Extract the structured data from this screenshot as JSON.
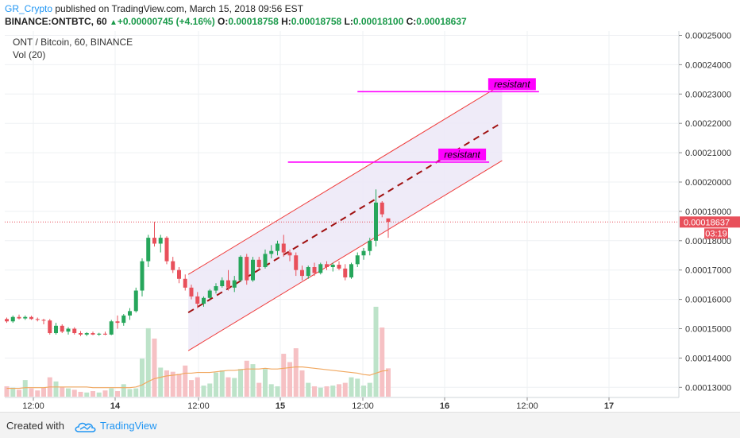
{
  "header": {
    "author": "GR_Crypto",
    "published_text": " published on TradingView.com, March 15, 2018 09:56 EST",
    "symbol": "BINANCE:ONTBTC, 60",
    "change": "+0.00000745 (+4.16%)",
    "o_label": "O:",
    "o_value": "0.00018758",
    "h_label": "H:",
    "h_value": "0.00018758",
    "l_label": "L:",
    "l_value": "0.00018100",
    "c_label": "C:",
    "c_value": "0.00018637"
  },
  "legend": {
    "title": "ONT / Bitcoin, 60, BINANCE",
    "vol": "Vol (20)"
  },
  "footer": {
    "created_with": "Created with",
    "brand": "TradingView"
  },
  "colors": {
    "up": "#26a65b",
    "down": "#e8505b",
    "up_vol": "#bde3c9",
    "down_vol": "#f6c1c4",
    "channel_line": "#ef3b3b",
    "channel_fill": "#ece8f7",
    "midline": "#a01010",
    "resistance": "#ff00ff",
    "ma": "#f1a860",
    "price_badge": "#e8505b"
  },
  "chart_data": {
    "type": "candlestick",
    "x_tick_labels": [
      "12:00",
      "14",
      "12:00",
      "15",
      "12:00",
      "16",
      "12:00",
      "17"
    ],
    "y_tick_labels": [
      "0.00025000",
      "0.00024000",
      "0.00023000",
      "0.00022000",
      "0.00021000",
      "0.00020000",
      "0.00019000",
      "0.00018000",
      "0.00017000",
      "0.00016000",
      "0.00015000",
      "0.00014000",
      "0.00013000"
    ],
    "ylim": [
      0.000128,
      0.0002535
    ],
    "last_price": "0.00018637",
    "countdown": "03:19",
    "candles": [
      {
        "o": 0.0001533,
        "h": 0.0001538,
        "l": 0.000152,
        "c": 0.0001525
      },
      {
        "o": 0.0001525,
        "h": 0.0001545,
        "l": 0.000152,
        "c": 0.000154
      },
      {
        "o": 0.000154,
        "h": 0.0001548,
        "l": 0.0001532,
        "c": 0.0001535
      },
      {
        "o": 0.0001535,
        "h": 0.0001545,
        "l": 0.000153,
        "c": 0.000154
      },
      {
        "o": 0.000154,
        "h": 0.0001544,
        "l": 0.000153,
        "c": 0.0001533
      },
      {
        "o": 0.0001533,
        "h": 0.0001538,
        "l": 0.0001525,
        "c": 0.000153
      },
      {
        "o": 0.000153,
        "h": 0.0001534,
        "l": 0.0001515,
        "c": 0.0001528
      },
      {
        "o": 0.0001528,
        "h": 0.0001533,
        "l": 0.000148,
        "c": 0.0001485
      },
      {
        "o": 0.0001485,
        "h": 0.000152,
        "l": 0.000148,
        "c": 0.000151
      },
      {
        "o": 0.000151,
        "h": 0.0001515,
        "l": 0.0001485,
        "c": 0.000149
      },
      {
        "o": 0.000149,
        "h": 0.0001505,
        "l": 0.000148,
        "c": 0.00015
      },
      {
        "o": 0.00015,
        "h": 0.0001505,
        "l": 0.000148,
        "c": 0.0001485
      },
      {
        "o": 0.0001485,
        "h": 0.0001492,
        "l": 0.0001475,
        "c": 0.000148
      },
      {
        "o": 0.000148,
        "h": 0.0001488,
        "l": 0.0001475,
        "c": 0.0001485
      },
      {
        "o": 0.0001485,
        "h": 0.000149,
        "l": 0.0001478,
        "c": 0.000148
      },
      {
        "o": 0.000148,
        "h": 0.0001486,
        "l": 0.0001476,
        "c": 0.0001483
      },
      {
        "o": 0.0001483,
        "h": 0.000149,
        "l": 0.0001478,
        "c": 0.000148
      },
      {
        "o": 0.000148,
        "h": 0.000153,
        "l": 0.0001478,
        "c": 0.0001525
      },
      {
        "o": 0.0001525,
        "h": 0.0001545,
        "l": 0.00015,
        "c": 0.000152
      },
      {
        "o": 0.000152,
        "h": 0.000155,
        "l": 0.000151,
        "c": 0.0001545
      },
      {
        "o": 0.0001545,
        "h": 0.000157,
        "l": 0.000153,
        "c": 0.000156
      },
      {
        "o": 0.000156,
        "h": 0.000164,
        "l": 0.0001555,
        "c": 0.000163
      },
      {
        "o": 0.000163,
        "h": 0.000174,
        "l": 0.000161,
        "c": 0.000173
      },
      {
        "o": 0.000173,
        "h": 0.000182,
        "l": 0.000171,
        "c": 0.000181
      },
      {
        "o": 0.000181,
        "h": 0.0001865,
        "l": 0.000178,
        "c": 0.000179
      },
      {
        "o": 0.000179,
        "h": 0.000182,
        "l": 0.000176,
        "c": 0.000181
      },
      {
        "o": 0.000181,
        "h": 0.0001815,
        "l": 0.000172,
        "c": 0.000173
      },
      {
        "o": 0.000173,
        "h": 0.0001745,
        "l": 0.000169,
        "c": 0.00017
      },
      {
        "o": 0.00017,
        "h": 0.000171,
        "l": 0.0001655,
        "c": 0.000167
      },
      {
        "o": 0.000167,
        "h": 0.0001685,
        "l": 0.000163,
        "c": 0.000164
      },
      {
        "o": 0.000164,
        "h": 0.000165,
        "l": 0.00016,
        "c": 0.000161
      },
      {
        "o": 0.000161,
        "h": 0.0001625,
        "l": 0.000157,
        "c": 0.0001585
      },
      {
        "o": 0.0001585,
        "h": 0.000161,
        "l": 0.0001575,
        "c": 0.0001605
      },
      {
        "o": 0.0001605,
        "h": 0.0001635,
        "l": 0.00016,
        "c": 0.000163
      },
      {
        "o": 0.000163,
        "h": 0.0001655,
        "l": 0.000162,
        "c": 0.0001645
      },
      {
        "o": 0.0001645,
        "h": 0.0001675,
        "l": 0.000164,
        "c": 0.0001665
      },
      {
        "o": 0.0001665,
        "h": 0.00017,
        "l": 0.000163,
        "c": 0.000164
      },
      {
        "o": 0.000164,
        "h": 0.000168,
        "l": 0.0001625,
        "c": 0.0001665
      },
      {
        "o": 0.0001665,
        "h": 0.000175,
        "l": 0.000166,
        "c": 0.0001745
      },
      {
        "o": 0.0001745,
        "h": 0.0001755,
        "l": 0.000165,
        "c": 0.0001665
      },
      {
        "o": 0.0001665,
        "h": 0.0001745,
        "l": 0.000166,
        "c": 0.0001735
      },
      {
        "o": 0.0001735,
        "h": 0.0001745,
        "l": 0.00017,
        "c": 0.000171
      },
      {
        "o": 0.000171,
        "h": 0.000177,
        "l": 0.0001705,
        "c": 0.0001755
      },
      {
        "o": 0.0001755,
        "h": 0.0001785,
        "l": 0.000174,
        "c": 0.0001765
      },
      {
        "o": 0.0001765,
        "h": 0.00018,
        "l": 0.000175,
        "c": 0.000179
      },
      {
        "o": 0.000179,
        "h": 0.000182,
        "l": 0.0001745,
        "c": 0.000176
      },
      {
        "o": 0.000176,
        "h": 0.000177,
        "l": 0.000173,
        "c": 0.000175
      },
      {
        "o": 0.000175,
        "h": 0.000176,
        "l": 0.000168,
        "c": 0.00017
      },
      {
        "o": 0.00017,
        "h": 0.0001715,
        "l": 0.0001665,
        "c": 0.000168
      },
      {
        "o": 0.000168,
        "h": 0.0001715,
        "l": 0.000167,
        "c": 0.000171
      },
      {
        "o": 0.000171,
        "h": 0.0001725,
        "l": 0.000168,
        "c": 0.000169
      },
      {
        "o": 0.000169,
        "h": 0.0001725,
        "l": 0.0001685,
        "c": 0.000172
      },
      {
        "o": 0.000172,
        "h": 0.000173,
        "l": 0.00017,
        "c": 0.000171
      },
      {
        "o": 0.000171,
        "h": 0.0001725,
        "l": 0.0001695,
        "c": 0.0001718
      },
      {
        "o": 0.0001718,
        "h": 0.000173,
        "l": 0.00017,
        "c": 0.0001705
      },
      {
        "o": 0.0001705,
        "h": 0.000172,
        "l": 0.0001665,
        "c": 0.0001675
      },
      {
        "o": 0.0001675,
        "h": 0.0001725,
        "l": 0.000167,
        "c": 0.000172
      },
      {
        "o": 0.000172,
        "h": 0.000176,
        "l": 0.000171,
        "c": 0.000175
      },
      {
        "o": 0.000175,
        "h": 0.0001775,
        "l": 0.0001735,
        "c": 0.0001765
      },
      {
        "o": 0.0001765,
        "h": 0.000181,
        "l": 0.000175,
        "c": 0.00018
      },
      {
        "o": 0.00018,
        "h": 0.0001975,
        "l": 0.000178,
        "c": 0.000193
      },
      {
        "o": 0.000193,
        "h": 0.0001935,
        "l": 0.000188,
        "c": 0.000189
      },
      {
        "o": 0.0001876,
        "h": 0.0001876,
        "l": 0.000181,
        "c": 0.0001864
      }
    ],
    "volumes": [
      0.15,
      0.13,
      0.1,
      0.24,
      0.12,
      0.09,
      0.13,
      0.28,
      0.22,
      0.14,
      0.12,
      0.1,
      0.07,
      0.06,
      0.08,
      0.06,
      0.09,
      0.12,
      0.08,
      0.18,
      0.11,
      0.12,
      0.55,
      0.99,
      0.84,
      0.42,
      0.38,
      0.36,
      0.33,
      0.45,
      0.24,
      0.28,
      0.16,
      0.19,
      0.35,
      0.38,
      0.28,
      0.27,
      0.4,
      0.52,
      0.47,
      0.2,
      0.4,
      0.18,
      0.15,
      0.62,
      0.5,
      0.7,
      0.38,
      0.2,
      0.15,
      0.13,
      0.15,
      0.16,
      0.18,
      0.2,
      0.28,
      0.26,
      0.16,
      0.2,
      1.3,
      1.0,
      0.41
    ],
    "volume_ma": [
      0.12,
      0.12,
      0.12,
      0.13,
      0.13,
      0.13,
      0.13,
      0.14,
      0.14,
      0.14,
      0.14,
      0.14,
      0.14,
      0.14,
      0.13,
      0.13,
      0.13,
      0.13,
      0.13,
      0.13,
      0.13,
      0.14,
      0.17,
      0.22,
      0.26,
      0.28,
      0.3,
      0.31,
      0.32,
      0.34,
      0.34,
      0.35,
      0.35,
      0.35,
      0.36,
      0.37,
      0.38,
      0.38,
      0.39,
      0.4,
      0.4,
      0.4,
      0.41,
      0.4,
      0.4,
      0.41,
      0.42,
      0.43,
      0.43,
      0.42,
      0.41,
      0.4,
      0.39,
      0.38,
      0.37,
      0.36,
      0.35,
      0.34,
      0.32,
      0.31,
      0.34,
      0.37,
      0.38
    ],
    "channel": {
      "start_index": 29.5,
      "end_index": 80.5,
      "upper": [
        0.0001685,
        0.0002333
      ],
      "middle": [
        0.0001555,
        0.0002203
      ],
      "lower": [
        0.0001425,
        0.0002073
      ]
    },
    "resistance_levels": [
      {
        "label": "resistant",
        "value": 0.0002308,
        "start_index": 57,
        "end_index": 86.5
      },
      {
        "label": "resistant",
        "value": 0.0002068,
        "start_index": 45.7,
        "end_index": 78.4
      }
    ]
  }
}
